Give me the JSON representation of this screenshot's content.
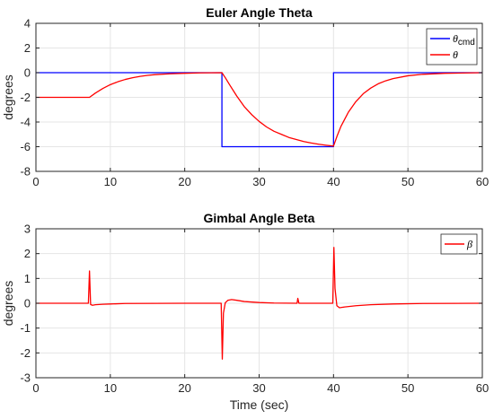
{
  "chart_data": [
    {
      "type": "line",
      "title": "Euler Angle Theta",
      "xlabel": "",
      "ylabel": "degrees",
      "xlim": [
        0,
        60
      ],
      "ylim": [
        -8,
        4
      ],
      "xticks": [
        0,
        10,
        20,
        30,
        40,
        50,
        60
      ],
      "yticks": [
        -8,
        -6,
        -4,
        -2,
        0,
        2,
        4
      ],
      "grid": true,
      "legend_position": "top-right",
      "series": [
        {
          "name": "θcmd",
          "name_main": "θ",
          "name_sub": "cmd",
          "color": "#0000ff",
          "x": [
            0,
            25,
            25,
            40,
            40,
            60
          ],
          "y": [
            0,
            0,
            -6,
            -6,
            0,
            0
          ]
        },
        {
          "name": "θ",
          "color": "#ff0000",
          "x": [
            0,
            7.2,
            8,
            9,
            10,
            11,
            12,
            13,
            14,
            15,
            16,
            18,
            20,
            22,
            25,
            25.5,
            26,
            27,
            28,
            29,
            30,
            31,
            32,
            33,
            34,
            35,
            36,
            37,
            38,
            39,
            40,
            40.5,
            41,
            42,
            43,
            44,
            45,
            46,
            47,
            48,
            50,
            52,
            55,
            60
          ],
          "y": [
            -2,
            -2,
            -1.65,
            -1.28,
            -0.97,
            -0.74,
            -0.55,
            -0.41,
            -0.3,
            -0.22,
            -0.16,
            -0.09,
            -0.05,
            -0.02,
            0,
            -0.45,
            -0.95,
            -1.9,
            -2.75,
            -3.4,
            -3.95,
            -4.4,
            -4.75,
            -5.0,
            -5.25,
            -5.42,
            -5.58,
            -5.7,
            -5.8,
            -5.88,
            -5.95,
            -5.1,
            -4.35,
            -3.2,
            -2.35,
            -1.7,
            -1.25,
            -0.9,
            -0.66,
            -0.48,
            -0.25,
            -0.13,
            -0.05,
            0
          ]
        }
      ]
    },
    {
      "type": "line",
      "title": "Gimbal Angle Beta",
      "xlabel": "Time (sec)",
      "ylabel": "degrees",
      "xlim": [
        0,
        60
      ],
      "ylim": [
        -3,
        3
      ],
      "xticks": [
        0,
        10,
        20,
        30,
        40,
        50,
        60
      ],
      "yticks": [
        -3,
        -2,
        -1,
        0,
        1,
        2,
        3
      ],
      "grid": true,
      "legend_position": "top-right",
      "series": [
        {
          "name": "β",
          "color": "#ff0000",
          "x": [
            0,
            7.05,
            7.2,
            7.35,
            7.6,
            8,
            9,
            10,
            12,
            20,
            24.9,
            25.05,
            25.2,
            25.45,
            25.8,
            26.3,
            27,
            28,
            30,
            32,
            35.1,
            35.2,
            35.35,
            35.6,
            39.9,
            40.05,
            40.2,
            40.45,
            40.8,
            41.5,
            43,
            45,
            48,
            52,
            60
          ],
          "y": [
            0,
            0,
            1.3,
            -0.05,
            -0.08,
            -0.06,
            -0.04,
            -0.03,
            -0.01,
            0,
            0,
            -2.25,
            -0.4,
            0.02,
            0.12,
            0.15,
            0.12,
            0.07,
            0.03,
            0.01,
            0,
            0.2,
            0,
            0,
            0,
            2.25,
            0.6,
            -0.1,
            -0.18,
            -0.15,
            -0.1,
            -0.06,
            -0.03,
            -0.01,
            0
          ]
        }
      ]
    }
  ]
}
